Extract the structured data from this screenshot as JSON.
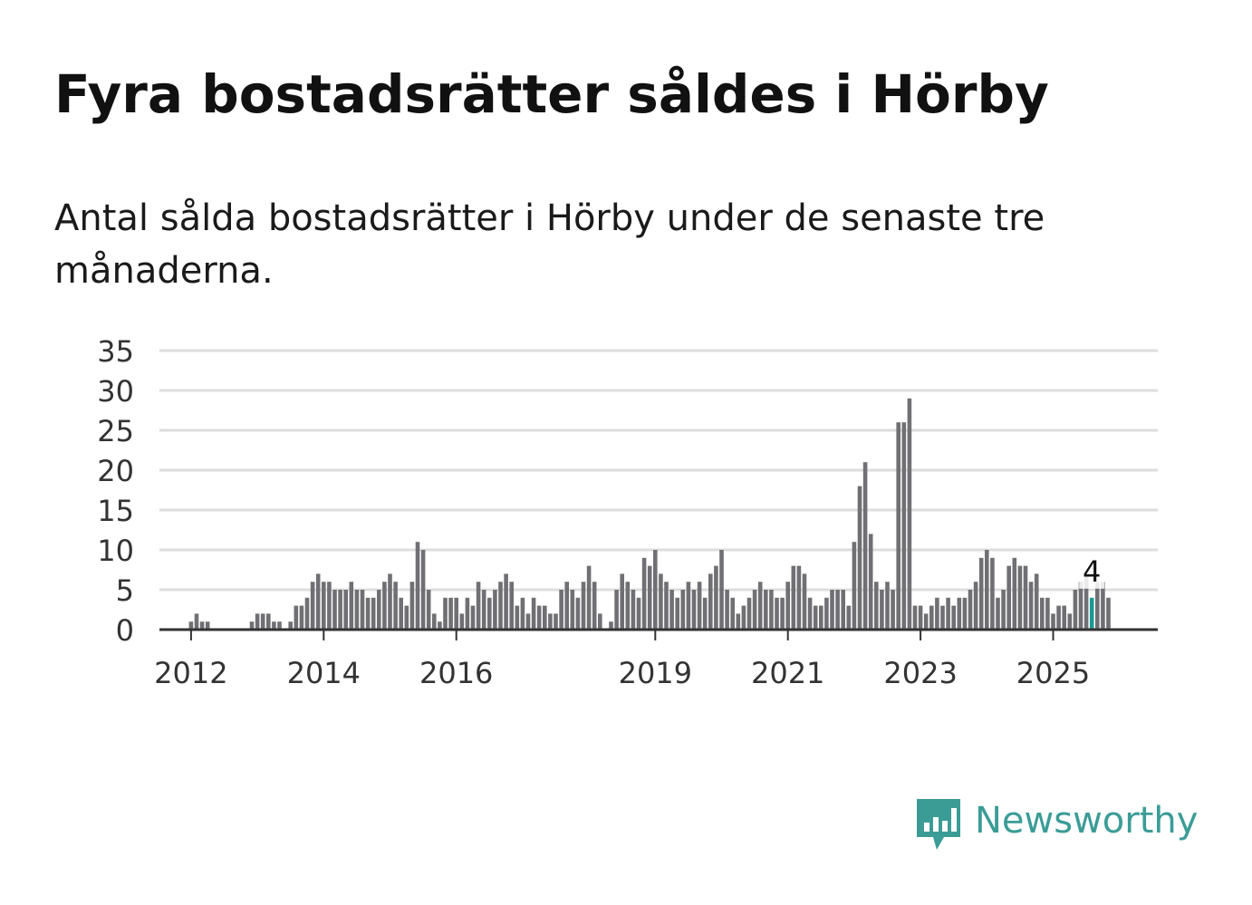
{
  "title": "Fyra bostadsrätter såldes i Hörby",
  "subtitle": "Antal sålda bostadsrätter i Hörby under de senaste tre månaderna.",
  "logo": {
    "text": "Newsworthy",
    "icon": "bar-chart-speech-bubble-icon",
    "color": "#3b9c96"
  },
  "colors": {
    "bar": "#707074",
    "highlight": "#1e9a94",
    "grid": "#dddddd",
    "axis": "#333333"
  },
  "chart_data": {
    "type": "bar",
    "title": "Fyra bostadsrätter såldes i Hörby",
    "subtitle": "Antal sålda bostadsrätter i Hörby under de senaste tre månaderna.",
    "xlabel": "",
    "ylabel": "",
    "ylim": [
      0,
      35
    ],
    "yticks": [
      0,
      5,
      10,
      15,
      20,
      25,
      30,
      35
    ],
    "grid": true,
    "x_start": "2011-05",
    "frequency": "monthly",
    "xticks": [
      {
        "label": "2012",
        "date": "2012-01"
      },
      {
        "label": "2014",
        "date": "2014-01"
      },
      {
        "label": "2016",
        "date": "2016-01"
      },
      {
        "label": "2019",
        "date": "2019-01"
      },
      {
        "label": "2021",
        "date": "2021-01"
      },
      {
        "label": "2023",
        "date": "2023-01"
      },
      {
        "label": "2025",
        "date": "2025-01"
      }
    ],
    "highlight": {
      "date": "2025-08",
      "value": 4,
      "label": "4"
    },
    "values": [
      0,
      0,
      0,
      0,
      0,
      0,
      0,
      0,
      1,
      2,
      1,
      1,
      0,
      0,
      0,
      0,
      0,
      0,
      0,
      1,
      2,
      2,
      2,
      1,
      1,
      0,
      1,
      3,
      3,
      4,
      6,
      7,
      6,
      6,
      5,
      5,
      5,
      6,
      5,
      5,
      4,
      4,
      5,
      6,
      7,
      6,
      4,
      3,
      6,
      11,
      10,
      5,
      2,
      1,
      4,
      4,
      4,
      2,
      4,
      3,
      6,
      5,
      4,
      5,
      6,
      7,
      6,
      3,
      4,
      2,
      4,
      3,
      3,
      2,
      2,
      5,
      6,
      5,
      4,
      6,
      8,
      6,
      2,
      0,
      1,
      5,
      7,
      6,
      5,
      4,
      9,
      8,
      10,
      7,
      6,
      5,
      4,
      5,
      6,
      5,
      6,
      4,
      7,
      8,
      10,
      5,
      4,
      2,
      3,
      4,
      5,
      6,
      5,
      5,
      4,
      4,
      6,
      8,
      8,
      7,
      4,
      3,
      3,
      4,
      5,
      5,
      5,
      3,
      11,
      18,
      21,
      12,
      6,
      5,
      6,
      5,
      26,
      26,
      29,
      3,
      3,
      2,
      3,
      4,
      3,
      4,
      3,
      4,
      4,
      5,
      6,
      9,
      10,
      9,
      4,
      5,
      8,
      9,
      8,
      8,
      6,
      7,
      4,
      4,
      2,
      3,
      3,
      2,
      5,
      6,
      7,
      4,
      6,
      6,
      4
    ]
  }
}
